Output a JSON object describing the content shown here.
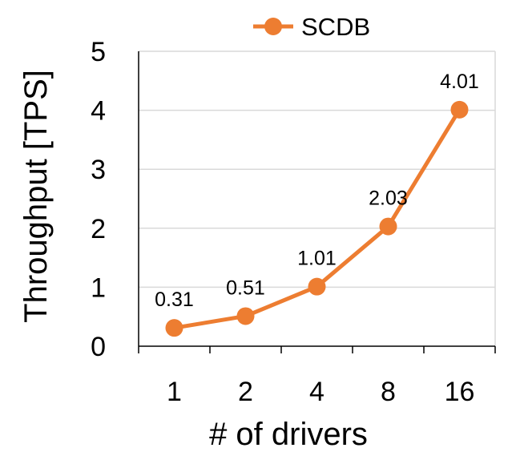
{
  "chart_data": {
    "type": "line",
    "categories": [
      "1",
      "2",
      "4",
      "8",
      "16"
    ],
    "series": [
      {
        "name": "SCDB",
        "values": [
          0.31,
          0.51,
          1.01,
          2.03,
          4.01
        ],
        "color": "#ED7D31"
      }
    ],
    "data_labels": [
      "0.31",
      "0.51",
      "1.01",
      "2.03",
      "4.01"
    ],
    "xlabel": "# of drivers",
    "ylabel": "Throughput [TPS]",
    "ylim": [
      0,
      5
    ],
    "yticks": [
      "0",
      "1",
      "2",
      "3",
      "4",
      "5"
    ],
    "grid": true,
    "legend": "top-center",
    "gridline_color": "#D9D9D9",
    "axis_color": "#000000"
  }
}
